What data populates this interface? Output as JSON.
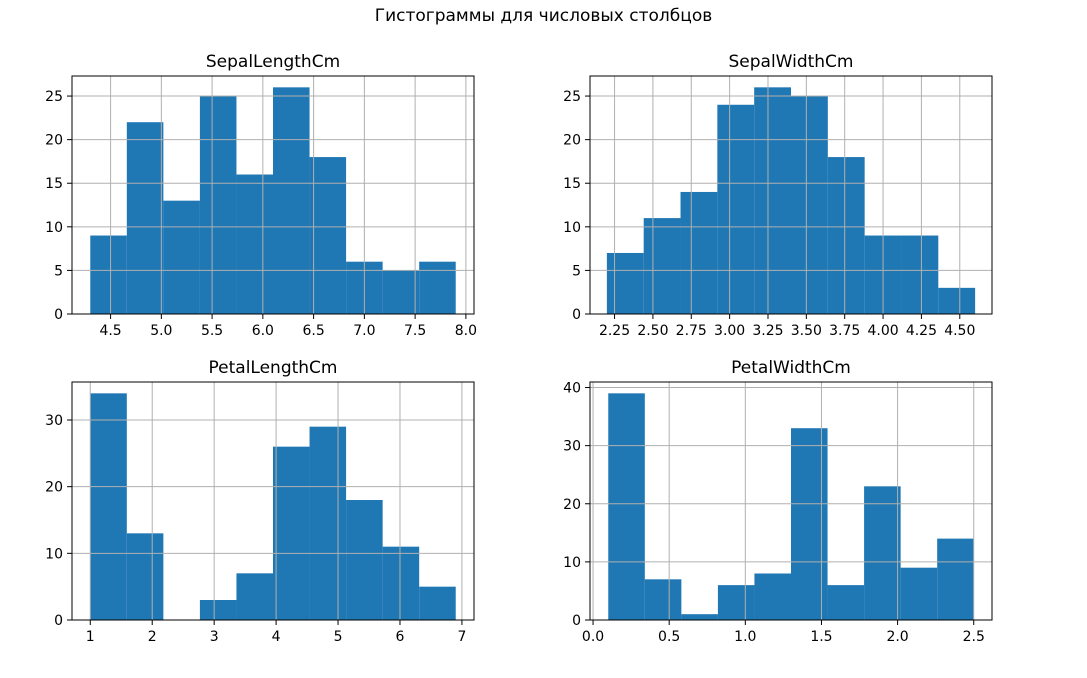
{
  "figure": {
    "suptitle": "Гистограммы для числовых столбцов",
    "bar_color": "#1f77b4",
    "grid_color": "#b0b0b0"
  },
  "chart_data": [
    {
      "type": "bar",
      "title": "SepalLengthCm",
      "xlabel": "",
      "ylabel": "",
      "grid": true,
      "bin_edges": [
        4.3,
        4.66,
        5.02,
        5.38,
        5.74,
        6.1,
        6.46,
        6.82,
        7.18,
        7.54,
        7.9
      ],
      "values": [
        9,
        22,
        13,
        25,
        16,
        26,
        18,
        6,
        5,
        6
      ],
      "xlim": [
        4.12,
        8.08
      ],
      "ylim": [
        0,
        27.3
      ],
      "xticks": [
        4.5,
        5.0,
        5.5,
        6.0,
        6.5,
        7.0,
        7.5,
        8.0
      ],
      "xtick_labels": [
        "4.5",
        "5.0",
        "5.5",
        "6.0",
        "6.5",
        "7.0",
        "7.5",
        "8.0"
      ],
      "yticks": [
        0,
        5,
        10,
        15,
        20,
        25
      ],
      "ytick_labels": [
        "0",
        "5",
        "10",
        "15",
        "20",
        "25"
      ]
    },
    {
      "type": "bar",
      "title": "SepalWidthCm",
      "xlabel": "",
      "ylabel": "",
      "grid": true,
      "bin_edges": [
        2.2,
        2.44,
        2.68,
        2.92,
        3.16,
        3.4,
        3.64,
        3.88,
        4.12,
        4.36,
        4.6
      ],
      "values": [
        7,
        11,
        14,
        24,
        26,
        25,
        18,
        9,
        9,
        3
      ],
      "xlim": [
        2.09,
        4.71
      ],
      "ylim": [
        0,
        27.3
      ],
      "xticks": [
        2.25,
        2.5,
        2.75,
        3.0,
        3.25,
        3.5,
        3.75,
        4.0,
        4.25,
        4.5
      ],
      "xtick_labels": [
        "2.25",
        "2.50",
        "2.75",
        "3.00",
        "3.25",
        "3.50",
        "3.75",
        "4.00",
        "4.25",
        "4.50"
      ],
      "yticks": [
        0,
        5,
        10,
        15,
        20,
        25
      ],
      "ytick_labels": [
        "0",
        "5",
        "10",
        "15",
        "20",
        "25"
      ]
    },
    {
      "type": "bar",
      "title": "PetalLengthCm",
      "xlabel": "",
      "ylabel": "",
      "grid": true,
      "bin_edges": [
        1.0,
        1.59,
        2.18,
        2.77,
        3.36,
        3.95,
        4.54,
        5.13,
        5.72,
        6.31,
        6.9
      ],
      "values": [
        34,
        13,
        0,
        3,
        7,
        26,
        29,
        18,
        11,
        5
      ],
      "xlim": [
        0.705,
        7.195
      ],
      "ylim": [
        0,
        35.7
      ],
      "xticks": [
        1,
        2,
        3,
        4,
        5,
        6,
        7
      ],
      "xtick_labels": [
        "1",
        "2",
        "3",
        "4",
        "5",
        "6",
        "7"
      ],
      "yticks": [
        0,
        10,
        20,
        30
      ],
      "ytick_labels": [
        "0",
        "10",
        "20",
        "30"
      ]
    },
    {
      "type": "bar",
      "title": "PetalWidthCm",
      "xlabel": "",
      "ylabel": "",
      "grid": true,
      "bin_edges": [
        0.1,
        0.34,
        0.58,
        0.82,
        1.06,
        1.3,
        1.54,
        1.78,
        2.02,
        2.26,
        2.5
      ],
      "values": [
        39,
        7,
        1,
        6,
        8,
        33,
        6,
        23,
        9,
        14
      ],
      "xlim": [
        -0.02,
        2.62
      ],
      "ylim": [
        0,
        40.95
      ],
      "xticks": [
        0.0,
        0.5,
        1.0,
        1.5,
        2.0,
        2.5
      ],
      "xtick_labels": [
        "0.0",
        "0.5",
        "1.0",
        "1.5",
        "2.0",
        "2.5"
      ],
      "yticks": [
        0,
        10,
        20,
        30,
        40
      ],
      "ytick_labels": [
        "0",
        "10",
        "20",
        "30",
        "40"
      ]
    }
  ]
}
